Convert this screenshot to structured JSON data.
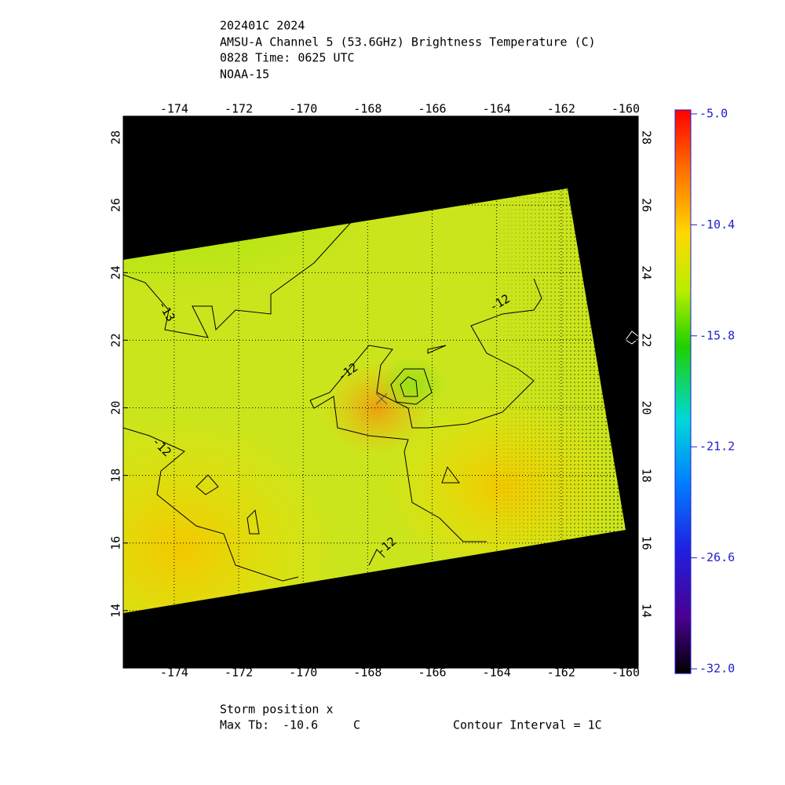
{
  "header": {
    "lines": [
      "202401C 2024",
      "AMSU-A Channel 5 (53.6GHz) Brightness Temperature (C)",
      "0828 Time: 0625 UTC",
      "NOAA-15"
    ]
  },
  "chart_data": {
    "type": "map",
    "xlim": [
      -175.58,
      -159.61
    ],
    "xticks": [
      -174,
      -172,
      -170,
      -168,
      -166,
      -164,
      -162,
      -160
    ],
    "ylim": [
      12.3,
      28.63
    ],
    "yticks": [
      14,
      16,
      18,
      20,
      22,
      24,
      26,
      28
    ],
    "grid": true,
    "colorbar": {
      "lim": [
        -32,
        -5
      ],
      "ticks": [
        {
          "value": -5,
          "label": "-5.0"
        },
        {
          "value": -10.4,
          "label": "-10.4"
        },
        {
          "value": -15.8,
          "label": "-15.8"
        },
        {
          "value": -21.2,
          "label": "-21.2"
        },
        {
          "value": -26.6,
          "label": "-26.6"
        },
        {
          "value": -32,
          "label": "-32.0"
        }
      ]
    },
    "contour_labels": [
      "-13",
      "-12",
      "-12",
      "-12",
      "-12"
    ]
  },
  "footer": {
    "storm": "Storm position x",
    "max_tb_label": "Max Tb:",
    "max_tb": "-10.6",
    "max_tb_unit": "C",
    "contour_interval": "Contour Interval = 1C"
  }
}
